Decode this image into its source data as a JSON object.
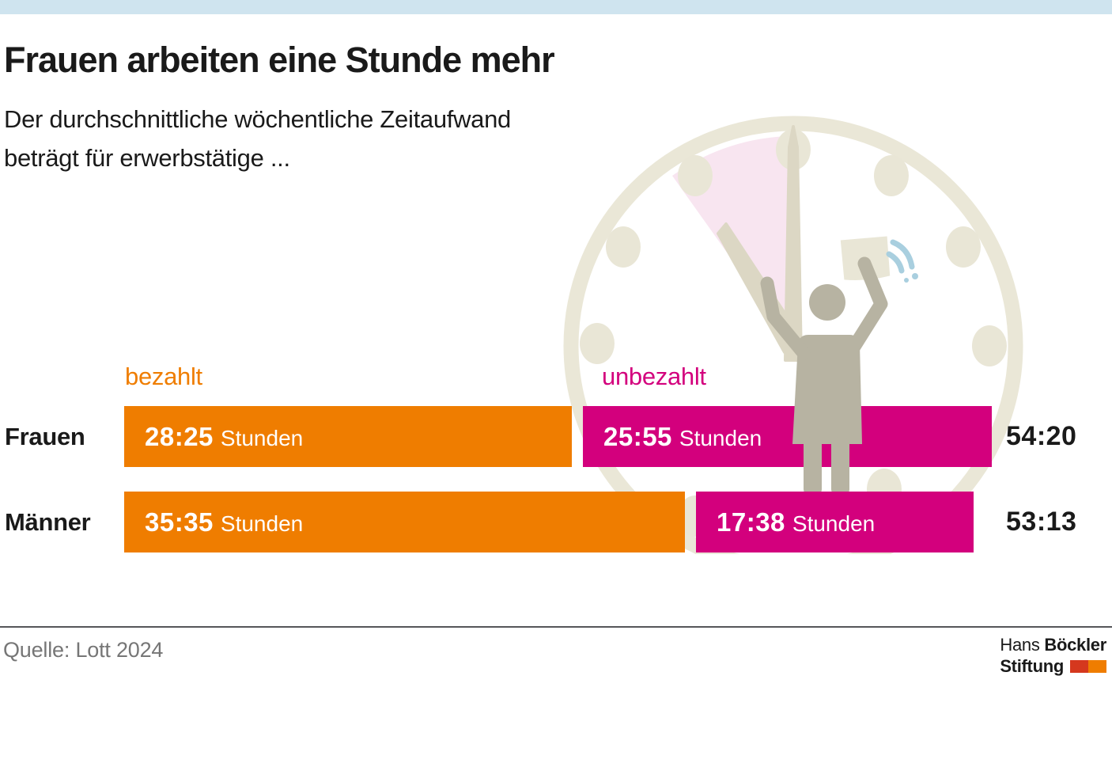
{
  "header": {
    "title": "Frauen arbeiten eine Stunde mehr",
    "subtitle_line1": "Der durchschnittliche wöchentliche Zeitaufwand",
    "subtitle_line2": "beträgt für erwerbstätige ..."
  },
  "legend": {
    "paid_label": "bezahlt",
    "unpaid_label": "unbezahlt"
  },
  "rows": [
    {
      "label": "Frauen",
      "paid": "28:25",
      "unpaid": "25:55",
      "unit": "Stunden",
      "total": "54:20"
    },
    {
      "label": "Männer",
      "paid": "35:35",
      "unpaid": "17:38",
      "unit": "Stunden",
      "total": "53:13"
    }
  ],
  "chart_data": {
    "type": "bar",
    "orientation": "horizontal",
    "stacked": true,
    "title": "Frauen arbeiten eine Stunde mehr",
    "subtitle": "Der durchschnittliche wöchentliche Zeitaufwand beträgt für erwerbstätige ...",
    "categories": [
      "Frauen",
      "Männer"
    ],
    "unit": "Stunden (hh:mm) pro Woche",
    "series": [
      {
        "name": "bezahlt",
        "color": "#ef7d00",
        "values_hhmm": [
          "28:25",
          "35:35"
        ],
        "values_hours": [
          28.4167,
          35.5833
        ]
      },
      {
        "name": "unbezahlt",
        "color": "#d3007d",
        "values_hhmm": [
          "25:55",
          "17:38"
        ],
        "values_hours": [
          25.9167,
          17.6333
        ]
      }
    ],
    "totals_hhmm": [
      "54:20",
      "53:13"
    ],
    "totals_hours": [
      54.3333,
      53.2167
    ],
    "legend_position": "above-bars",
    "grid": false
  },
  "footer": {
    "source": "Quelle: Lott 2024",
    "logo_line1_regular": "Hans ",
    "logo_line1_bold": "Böckler",
    "logo_line2_bold": "Stiftung"
  },
  "colors": {
    "top_strip": "#cfe4ef",
    "paid_orange": "#ef7d00",
    "unpaid_magenta": "#d3007d",
    "clock_beige": "#eae7d7",
    "clock_hands": "#dcd7c4",
    "wedge_pink": "#f8e5f0",
    "person_grey": "#b7b3a2",
    "note_beige": "#e9e6d6",
    "motion_blue": "#a9cfdf",
    "logo_red": "#d5381e",
    "logo_orange": "#ef7d00",
    "source_grey": "#767676",
    "rule_grey": "#55565a"
  },
  "icons": {
    "clock": "clock-illustration",
    "person": "person-raising-arms-figure",
    "note": "sticky-note",
    "motion": "motion-lines"
  }
}
